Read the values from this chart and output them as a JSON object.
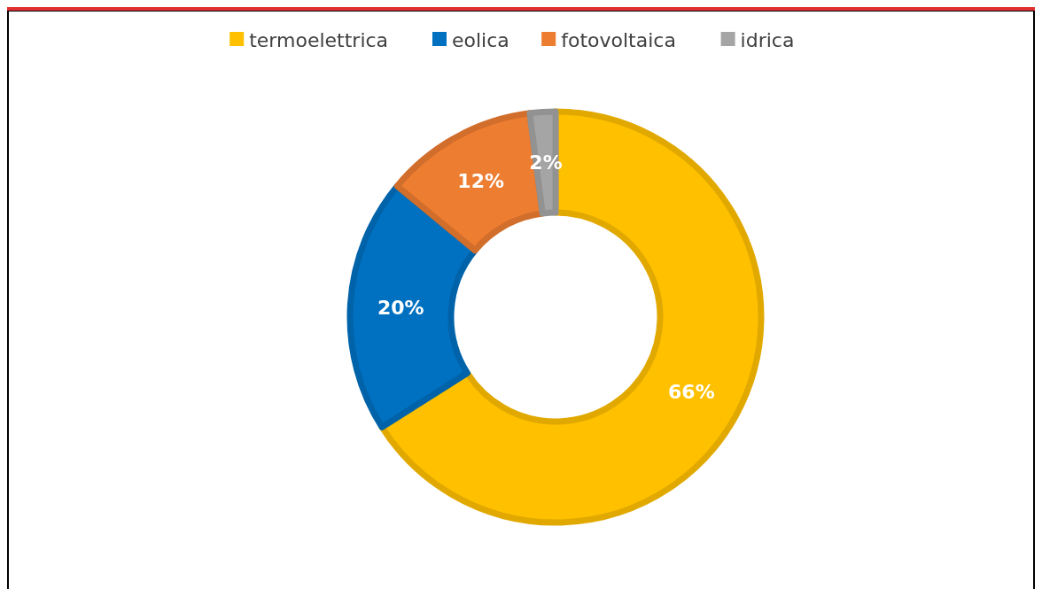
{
  "chart_data": {
    "type": "donut",
    "categories": [
      "termoelettrica",
      "eolica",
      "fotovoltaica",
      "idrica"
    ],
    "values": [
      66,
      20,
      12,
      2
    ],
    "colors": [
      "#ffc000",
      "#0070c0",
      "#ed7d31",
      "#a5a5a5"
    ],
    "value_labels": [
      "66%",
      "20%",
      "12%",
      "2%"
    ],
    "legend": "top"
  }
}
